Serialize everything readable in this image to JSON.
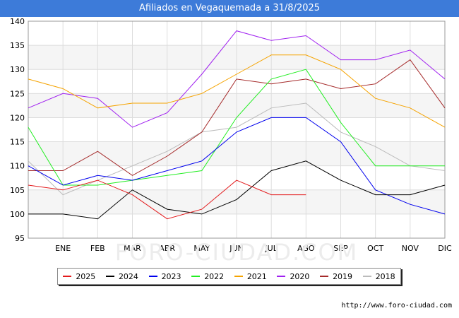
{
  "header": {
    "title": "Afiliados en Vegaquemada a 31/8/2025"
  },
  "footer": {
    "url": "http://www.foro-ciudad.com"
  },
  "watermark": "FORO-CIUDAD.COM",
  "chart_data": {
    "type": "line",
    "title": "Afiliados en Vegaquemada a 31/8/2025",
    "x_labels": [
      "",
      "ENE",
      "FEB",
      "MAR",
      "ABR",
      "MAY",
      "JUN",
      "JUL",
      "AGO",
      "SEP",
      "OCT",
      "NOV",
      "DIC"
    ],
    "ylim": [
      95,
      140
    ],
    "yticks": [
      95,
      100,
      105,
      110,
      115,
      120,
      125,
      130,
      135,
      140
    ],
    "grid": true,
    "legend_position": "bottom",
    "series": [
      {
        "name": "2025",
        "color": "#e31a1c",
        "values": [
          106,
          105,
          107,
          104,
          99,
          101,
          107,
          104,
          104,
          null,
          null,
          null,
          null
        ]
      },
      {
        "name": "2024",
        "color": "#000000",
        "values": [
          100,
          100,
          99,
          105,
          101,
          100,
          103,
          109,
          111,
          107,
          104,
          104,
          106
        ]
      },
      {
        "name": "2023",
        "color": "#0000ee",
        "values": [
          110,
          106,
          108,
          107,
          109,
          111,
          117,
          120,
          120,
          115,
          105,
          102,
          100
        ]
      },
      {
        "name": "2022",
        "color": "#22ee22",
        "values": [
          118,
          106,
          106,
          107,
          108,
          109,
          120,
          128,
          130,
          119,
          110,
          110,
          110
        ]
      },
      {
        "name": "2021",
        "color": "#f5a300",
        "values": [
          128,
          126,
          122,
          123,
          123,
          125,
          129,
          133,
          133,
          130,
          124,
          122,
          118
        ]
      },
      {
        "name": "2020",
        "color": "#a020f0",
        "values": [
          122,
          125,
          124,
          118,
          121,
          129,
          138,
          136,
          137,
          132,
          132,
          134,
          128
        ]
      },
      {
        "name": "2019",
        "color": "#a52a2a",
        "values": [
          109,
          109,
          113,
          108,
          112,
          117,
          128,
          127,
          128,
          126,
          127,
          132,
          122
        ]
      },
      {
        "name": "2018",
        "color": "#bbbbbb",
        "values": [
          111,
          104,
          107,
          110,
          113,
          117,
          118,
          122,
          123,
          117,
          114,
          110,
          109
        ]
      }
    ]
  }
}
